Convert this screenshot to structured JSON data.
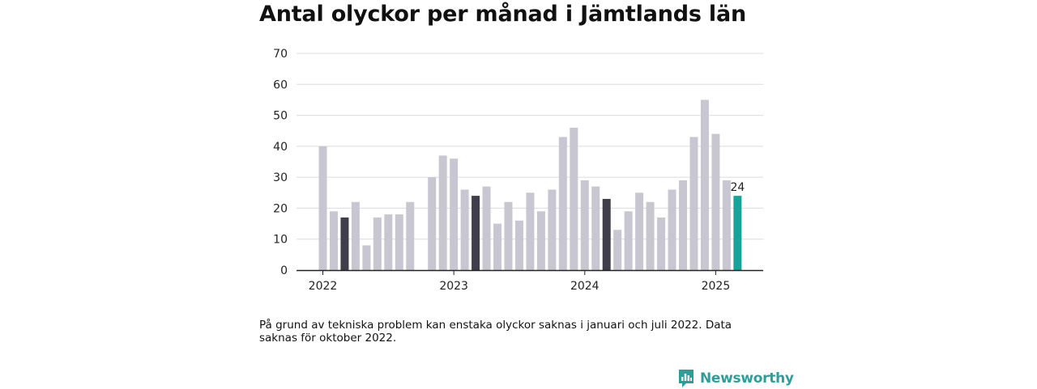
{
  "header": {
    "title": "Antal olyckor per månad i Jämtlands län"
  },
  "footnote": "På grund av tekniska problem kan enstaka olyckor saknas i januari och juli 2022. Data saknas för oktober 2022.",
  "brand": {
    "name": "Newsworthy",
    "icon": "newsworthy-logo-icon",
    "color": "#2e9e9a"
  },
  "chart_data": {
    "type": "bar",
    "title": "Antal olyckor per månad i Jämtlands län",
    "xlabel": "",
    "ylabel": "",
    "ylim": [
      0,
      70
    ],
    "yticks": [
      0,
      10,
      20,
      30,
      40,
      50,
      60,
      70
    ],
    "xticks": [
      {
        "label": "2022",
        "at": "2022-01"
      },
      {
        "label": "2023",
        "at": "2023-01"
      },
      {
        "label": "2024",
        "at": "2024-01"
      },
      {
        "label": "2025",
        "at": "2025-01"
      }
    ],
    "grid": true,
    "colors": {
      "default": "#c8c7d1",
      "highlight": "#3f3e4a",
      "latest": "#17a39a"
    },
    "highlight_months": [
      "2022-03",
      "2023-03",
      "2024-03"
    ],
    "latest_month": "2025-03",
    "data_labels": [
      {
        "month": "2025-03",
        "text": "24"
      }
    ],
    "months": [
      "2022-01",
      "2022-02",
      "2022-03",
      "2022-04",
      "2022-05",
      "2022-06",
      "2022-07",
      "2022-08",
      "2022-09",
      "2022-10",
      "2022-11",
      "2022-12",
      "2023-01",
      "2023-02",
      "2023-03",
      "2023-04",
      "2023-05",
      "2023-06",
      "2023-07",
      "2023-08",
      "2023-09",
      "2023-10",
      "2023-11",
      "2023-12",
      "2024-01",
      "2024-02",
      "2024-03",
      "2024-04",
      "2024-05",
      "2024-06",
      "2024-07",
      "2024-08",
      "2024-09",
      "2024-10",
      "2024-11",
      "2024-12",
      "2025-01",
      "2025-02",
      "2025-03"
    ],
    "values": [
      40,
      19,
      17,
      22,
      8,
      17,
      18,
      18,
      22,
      null,
      30,
      37,
      36,
      26,
      24,
      27,
      15,
      22,
      16,
      25,
      19,
      26,
      43,
      46,
      29,
      27,
      23,
      13,
      19,
      25,
      22,
      17,
      26,
      29,
      43,
      55,
      44,
      29,
      24
    ]
  }
}
